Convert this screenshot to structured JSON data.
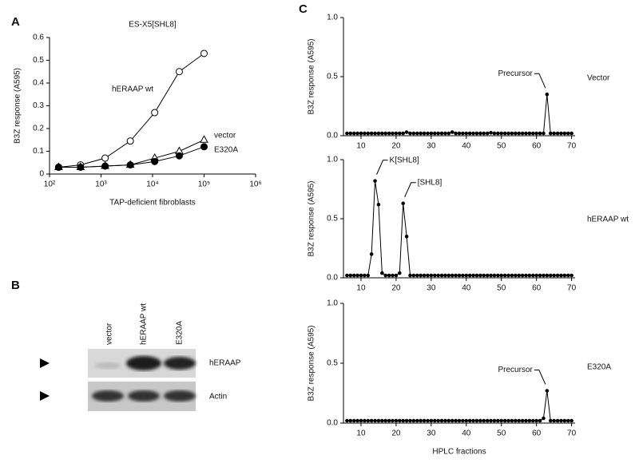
{
  "chart_data": [
    {
      "type": "line",
      "panel": "A",
      "title": "ES-X5[SHL8]",
      "x_label": "TAP-deficient fibroblasts",
      "y_label": "B3Z response (A595)",
      "xscale": "log",
      "xlim": [
        100,
        1000000
      ],
      "xticks": [
        {
          "value": 100,
          "label": "10²"
        },
        {
          "value": 1000,
          "label": "10³"
        },
        {
          "value": 10000,
          "label": "10⁴"
        },
        {
          "value": 100000,
          "label": "10⁵"
        },
        {
          "value": 1000000,
          "label": "10⁶"
        }
      ],
      "ylim": [
        0,
        0.6
      ],
      "yticks": [
        0,
        0.1,
        0.2,
        0.3,
        0.4,
        0.5,
        0.6
      ],
      "x": [
        150,
        400,
        1200,
        3700,
        11000,
        33000,
        100000
      ],
      "series": [
        {
          "name": "hERAAP wt",
          "color": "#000000",
          "marker": "open-circle",
          "values": [
            0.03,
            0.04,
            0.07,
            0.145,
            0.27,
            0.45,
            0.53
          ]
        },
        {
          "name": "vector",
          "color": "#000000",
          "marker": "open-triangle",
          "values": [
            0.03,
            0.03,
            0.035,
            0.04,
            0.07,
            0.1,
            0.15
          ]
        },
        {
          "name": "E320A",
          "color": "#000000",
          "marker": "filled-circle",
          "values": [
            0.03,
            0.03,
            0.035,
            0.04,
            0.055,
            0.08,
            0.12
          ]
        }
      ]
    },
    {
      "type": "line",
      "panel": "C",
      "y_label": "B3Z response (A595)",
      "xlim": [
        5,
        71
      ],
      "xticks": [
        10,
        20,
        30,
        40,
        50,
        60,
        70
      ],
      "ylim": [
        0,
        1
      ],
      "yticks": [
        {
          "value": 0,
          "label": "0.0"
        },
        {
          "value": 0.5,
          "label": "0.5"
        },
        {
          "value": 1,
          "label": "1.0"
        }
      ],
      "x": [
        6,
        7,
        8,
        9,
        10,
        11,
        12,
        13,
        14,
        15,
        16,
        17,
        18,
        19,
        20,
        21,
        22,
        23,
        24,
        25,
        26,
        27,
        28,
        29,
        30,
        31,
        32,
        33,
        34,
        35,
        36,
        37,
        38,
        39,
        40,
        41,
        42,
        43,
        44,
        45,
        46,
        47,
        48,
        49,
        50,
        51,
        52,
        53,
        54,
        55,
        56,
        57,
        58,
        59,
        60,
        61,
        62,
        63,
        64,
        65,
        66,
        67,
        68,
        69,
        70
      ],
      "series": [
        {
          "name": "Vector",
          "color": "#000000",
          "marker": "filled-circle",
          "values": [
            0.02,
            0.02,
            0.02,
            0.02,
            0.02,
            0.02,
            0.02,
            0.02,
            0.02,
            0.02,
            0.02,
            0.02,
            0.02,
            0.02,
            0.02,
            0.02,
            0.02,
            0.03,
            0.02,
            0.02,
            0.02,
            0.02,
            0.02,
            0.02,
            0.02,
            0.02,
            0.02,
            0.02,
            0.02,
            0.02,
            0.03,
            0.02,
            0.02,
            0.02,
            0.02,
            0.02,
            0.02,
            0.02,
            0.02,
            0.02,
            0.02,
            0.025,
            0.02,
            0.02,
            0.02,
            0.02,
            0.02,
            0.02,
            0.02,
            0.02,
            0.02,
            0.02,
            0.02,
            0.02,
            0.02,
            0.02,
            0.02,
            0.35,
            0.02,
            0.02,
            0.02,
            0.02,
            0.02,
            0.02,
            0.02
          ]
        }
      ],
      "annotations": [
        {
          "text": "Precursor",
          "x": 63,
          "side": "left"
        }
      ]
    },
    {
      "type": "line",
      "y_label": "B3Z response (A595)",
      "xlim": [
        5,
        71
      ],
      "xticks": [
        10,
        20,
        30,
        40,
        50,
        60,
        70
      ],
      "ylim": [
        0,
        1
      ],
      "yticks": [
        {
          "value": 0,
          "label": "0.0"
        },
        {
          "value": 0.5,
          "label": "0.5"
        },
        {
          "value": 1,
          "label": "1.0"
        }
      ],
      "x": [
        6,
        7,
        8,
        9,
        10,
        11,
        12,
        13,
        14,
        15,
        16,
        17,
        18,
        19,
        20,
        21,
        22,
        23,
        24,
        25,
        26,
        27,
        28,
        29,
        30,
        31,
        32,
        33,
        34,
        35,
        36,
        37,
        38,
        39,
        40,
        41,
        42,
        43,
        44,
        45,
        46,
        47,
        48,
        49,
        50,
        51,
        52,
        53,
        54,
        55,
        56,
        57,
        58,
        59,
        60,
        61,
        62,
        63,
        64,
        65,
        66,
        67,
        68,
        69,
        70
      ],
      "series": [
        {
          "name": "hERAAP wt",
          "color": "#000000",
          "marker": "filled-circle",
          "values": [
            0.02,
            0.02,
            0.02,
            0.02,
            0.02,
            0.02,
            0.02,
            0.2,
            0.82,
            0.62,
            0.04,
            0.02,
            0.02,
            0.02,
            0.02,
            0.04,
            0.63,
            0.35,
            0.02,
            0.02,
            0.02,
            0.02,
            0.02,
            0.02,
            0.02,
            0.02,
            0.02,
            0.02,
            0.02,
            0.02,
            0.02,
            0.02,
            0.02,
            0.02,
            0.02,
            0.02,
            0.02,
            0.02,
            0.02,
            0.02,
            0.02,
            0.02,
            0.02,
            0.02,
            0.02,
            0.02,
            0.02,
            0.02,
            0.02,
            0.02,
            0.02,
            0.02,
            0.02,
            0.02,
            0.02,
            0.02,
            0.02,
            0.02,
            0.02,
            0.02,
            0.02,
            0.02,
            0.02,
            0.02,
            0.02
          ]
        }
      ],
      "annotations": [
        {
          "text": "K[SHL8]",
          "x": 14,
          "side": "right"
        },
        {
          "text": "[SHL8]",
          "x": 22,
          "side": "right"
        }
      ]
    },
    {
      "type": "line",
      "x_label": "HPLC fractions",
      "y_label": "B3Z response (A595)",
      "xlim": [
        5,
        71
      ],
      "xticks": [
        10,
        20,
        30,
        40,
        50,
        60,
        70
      ],
      "ylim": [
        0,
        1
      ],
      "yticks": [
        {
          "value": 0,
          "label": "0.0"
        },
        {
          "value": 0.5,
          "label": "0.5"
        },
        {
          "value": 1,
          "label": "1.0"
        }
      ],
      "x": [
        6,
        7,
        8,
        9,
        10,
        11,
        12,
        13,
        14,
        15,
        16,
        17,
        18,
        19,
        20,
        21,
        22,
        23,
        24,
        25,
        26,
        27,
        28,
        29,
        30,
        31,
        32,
        33,
        34,
        35,
        36,
        37,
        38,
        39,
        40,
        41,
        42,
        43,
        44,
        45,
        46,
        47,
        48,
        49,
        50,
        51,
        52,
        53,
        54,
        55,
        56,
        57,
        58,
        59,
        60,
        61,
        62,
        63,
        64,
        65,
        66,
        67,
        68,
        69,
        70
      ],
      "series": [
        {
          "name": "E320A",
          "color": "#000000",
          "marker": "filled-circle",
          "values": [
            0.02,
            0.02,
            0.02,
            0.02,
            0.02,
            0.02,
            0.02,
            0.02,
            0.02,
            0.02,
            0.02,
            0.02,
            0.02,
            0.02,
            0.02,
            0.02,
            0.02,
            0.02,
            0.02,
            0.02,
            0.02,
            0.02,
            0.02,
            0.02,
            0.02,
            0.02,
            0.02,
            0.02,
            0.02,
            0.02,
            0.02,
            0.02,
            0.02,
            0.02,
            0.02,
            0.02,
            0.02,
            0.02,
            0.02,
            0.02,
            0.02,
            0.02,
            0.02,
            0.02,
            0.02,
            0.02,
            0.02,
            0.02,
            0.02,
            0.02,
            0.02,
            0.02,
            0.02,
            0.02,
            0.02,
            0.02,
            0.04,
            0.27,
            0.02,
            0.02,
            0.02,
            0.02,
            0.02,
            0.02,
            0.02
          ]
        }
      ],
      "annotations": [
        {
          "text": "Precursor",
          "x": 63,
          "side": "left"
        }
      ]
    }
  ],
  "blot": {
    "panel": "B",
    "lanes": [
      "vector",
      "hERAAP wt",
      "E320A"
    ],
    "rows": [
      "hERAAP",
      "Actin"
    ]
  }
}
